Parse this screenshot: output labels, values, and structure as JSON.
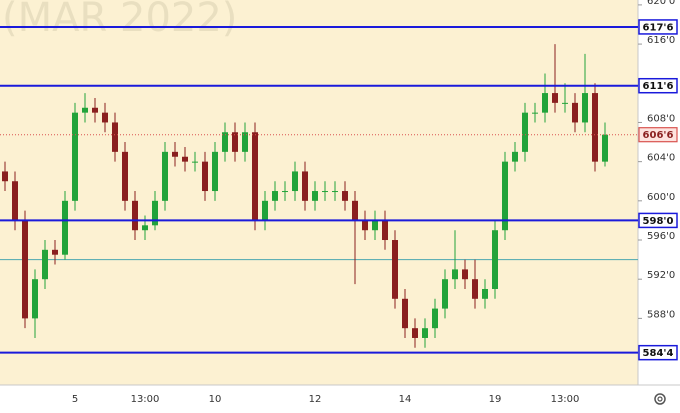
{
  "chart_data": {
    "type": "candlestick",
    "watermark": "(MAR 2022)",
    "ylim": [
      581.2,
      620.5
    ],
    "yticks": [
      {
        "value": 620,
        "label": "620'0"
      },
      {
        "value": 616,
        "label": "616'0"
      },
      {
        "value": 608,
        "label": "608'0"
      },
      {
        "value": 604,
        "label": "604'0"
      },
      {
        "value": 600,
        "label": "600'0"
      },
      {
        "value": 596,
        "label": "596'0"
      },
      {
        "value": 592,
        "label": "592'0"
      },
      {
        "value": 588,
        "label": "588'0"
      }
    ],
    "levels": [
      {
        "value": 617.75,
        "label": "617'6",
        "color": "#1a1adb"
      },
      {
        "value": 611.75,
        "label": "611'6",
        "color": "#1a1adb"
      },
      {
        "value": 598,
        "label": "598'0",
        "color": "#1a1adb"
      },
      {
        "value": 584.5,
        "label": "584'4",
        "color": "#1a1adb"
      }
    ],
    "last_price": {
      "value": 606.75,
      "label": "606'6",
      "color": "#d9534f"
    },
    "reference_line": {
      "value": 594,
      "color": "#4aa6b0"
    },
    "up_color": "#22a33a",
    "down_color": "#8a1f1f",
    "categories": [
      null,
      null,
      null,
      null,
      null,
      null,
      null,
      "5",
      null,
      null,
      null,
      null,
      null,
      null,
      "13:00",
      null,
      null,
      null,
      null,
      null,
      null,
      "10",
      null,
      null,
      null,
      null,
      null,
      null,
      null,
      null,
      null,
      "12",
      null,
      null,
      null,
      null,
      null,
      null,
      null,
      null,
      "14",
      null,
      null,
      null,
      null,
      null,
      null,
      null,
      null,
      "19",
      null,
      null,
      null,
      null,
      null,
      null,
      "13:00",
      null,
      null,
      null,
      null
    ],
    "open": [
      603,
      602,
      598,
      588,
      592,
      595,
      594.5,
      600,
      609,
      609.5,
      609,
      608,
      605,
      600,
      597,
      597.5,
      600,
      605,
      604.5,
      604,
      604,
      601,
      605,
      607,
      605,
      607,
      598,
      600,
      601,
      601,
      603,
      600,
      601,
      601,
      601,
      600,
      598,
      597,
      598,
      596,
      590,
      587,
      586,
      587,
      589,
      592,
      593,
      592,
      590,
      591,
      597,
      604,
      605,
      609,
      609,
      611,
      610,
      610,
      608,
      611,
      604
    ],
    "high": [
      604,
      603,
      599,
      593,
      596,
      596,
      601,
      610,
      611,
      610.5,
      610,
      609,
      606,
      601,
      598.5,
      601,
      606,
      606,
      605.5,
      605,
      605,
      606,
      608,
      608,
      608,
      608,
      601,
      602,
      602,
      604,
      604,
      602,
      602,
      602,
      602,
      601,
      599,
      599,
      599,
      597,
      591,
      588,
      588,
      590,
      593,
      597,
      594,
      594,
      592,
      598,
      605,
      606,
      610,
      610,
      613,
      616,
      612,
      611,
      615,
      612,
      608
    ],
    "low": [
      601,
      597,
      587,
      586,
      591,
      593.5,
      594,
      599,
      608,
      608,
      607,
      604,
      599,
      596,
      596,
      597,
      599,
      603.5,
      603,
      603,
      600,
      600,
      604,
      604,
      604,
      597,
      597,
      599,
      600,
      600,
      599,
      599,
      600,
      600,
      599,
      591.5,
      596,
      596,
      595,
      589,
      586,
      585,
      585,
      586,
      588,
      591,
      591,
      589,
      589,
      590,
      596,
      603,
      604,
      608,
      608,
      609,
      609,
      607,
      607,
      603,
      603.5
    ],
    "close": [
      602,
      598,
      588,
      592,
      595,
      594.5,
      600,
      609,
      609.5,
      609,
      608,
      605,
      600,
      597,
      597.5,
      600,
      605,
      604.5,
      604,
      604,
      601,
      605,
      607,
      605,
      607,
      598,
      600,
      601,
      601,
      603,
      600,
      601,
      601,
      601,
      600,
      598,
      597,
      598,
      596,
      590,
      587,
      586,
      587,
      589,
      592,
      593,
      592,
      590,
      591,
      597,
      604,
      605,
      609,
      609,
      611,
      610,
      610,
      608,
      611,
      604,
      606.75
    ]
  }
}
